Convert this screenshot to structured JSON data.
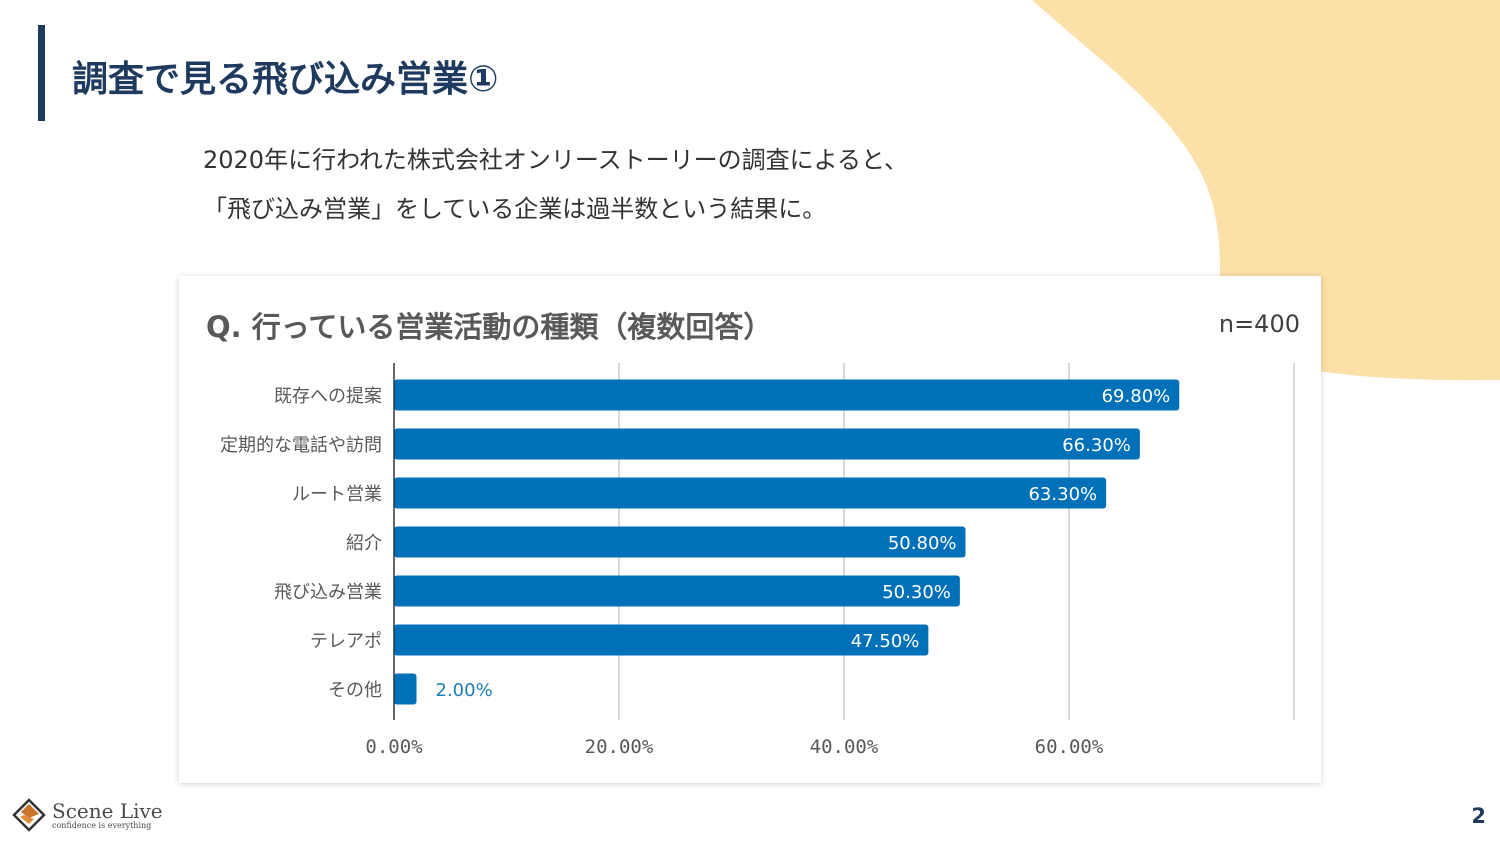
{
  "colors": {
    "accent": "#1f3a5f",
    "bar": "#0071b8",
    "blob": "#fbe0a7",
    "outside_label": "#1b7fb8"
  },
  "slide": {
    "title": "調査で見る飛び込み営業①",
    "intro_lines": [
      "2020年に行われた株式会社オンリーストーリーの調査によると、",
      "「飛び込み営業」をしている企業は過半数という結果に。"
    ],
    "page_number": "2"
  },
  "logo": {
    "icon": "scene-live-logo-icon",
    "name": "Scene Live",
    "tagline": "confidence is everything"
  },
  "chart_data": {
    "type": "bar",
    "orientation": "horizontal",
    "title": "Q. 行っている営業活動の種類（複数回答）",
    "annotation": "n=400",
    "categories": [
      "既存への提案",
      "定期的な電話や訪問",
      "ルート営業",
      "紹介",
      "飛び込み営業",
      "テレアポ",
      "その他"
    ],
    "values": [
      69.8,
      66.3,
      63.3,
      50.8,
      50.3,
      47.5,
      2.0
    ],
    "data_labels": [
      "69.80%",
      "66.30%",
      "63.30%",
      "50.80%",
      "50.30%",
      "47.50%",
      "2.00%"
    ],
    "xlabel": "",
    "ylabel": "",
    "xlim": [
      0,
      80
    ],
    "x_ticks": [
      0,
      20,
      40,
      60,
      80
    ],
    "x_tick_labels": [
      "0.00%",
      "20.00%",
      "40.00%",
      "60.00%",
      ""
    ],
    "grid": true,
    "legend": "none"
  }
}
